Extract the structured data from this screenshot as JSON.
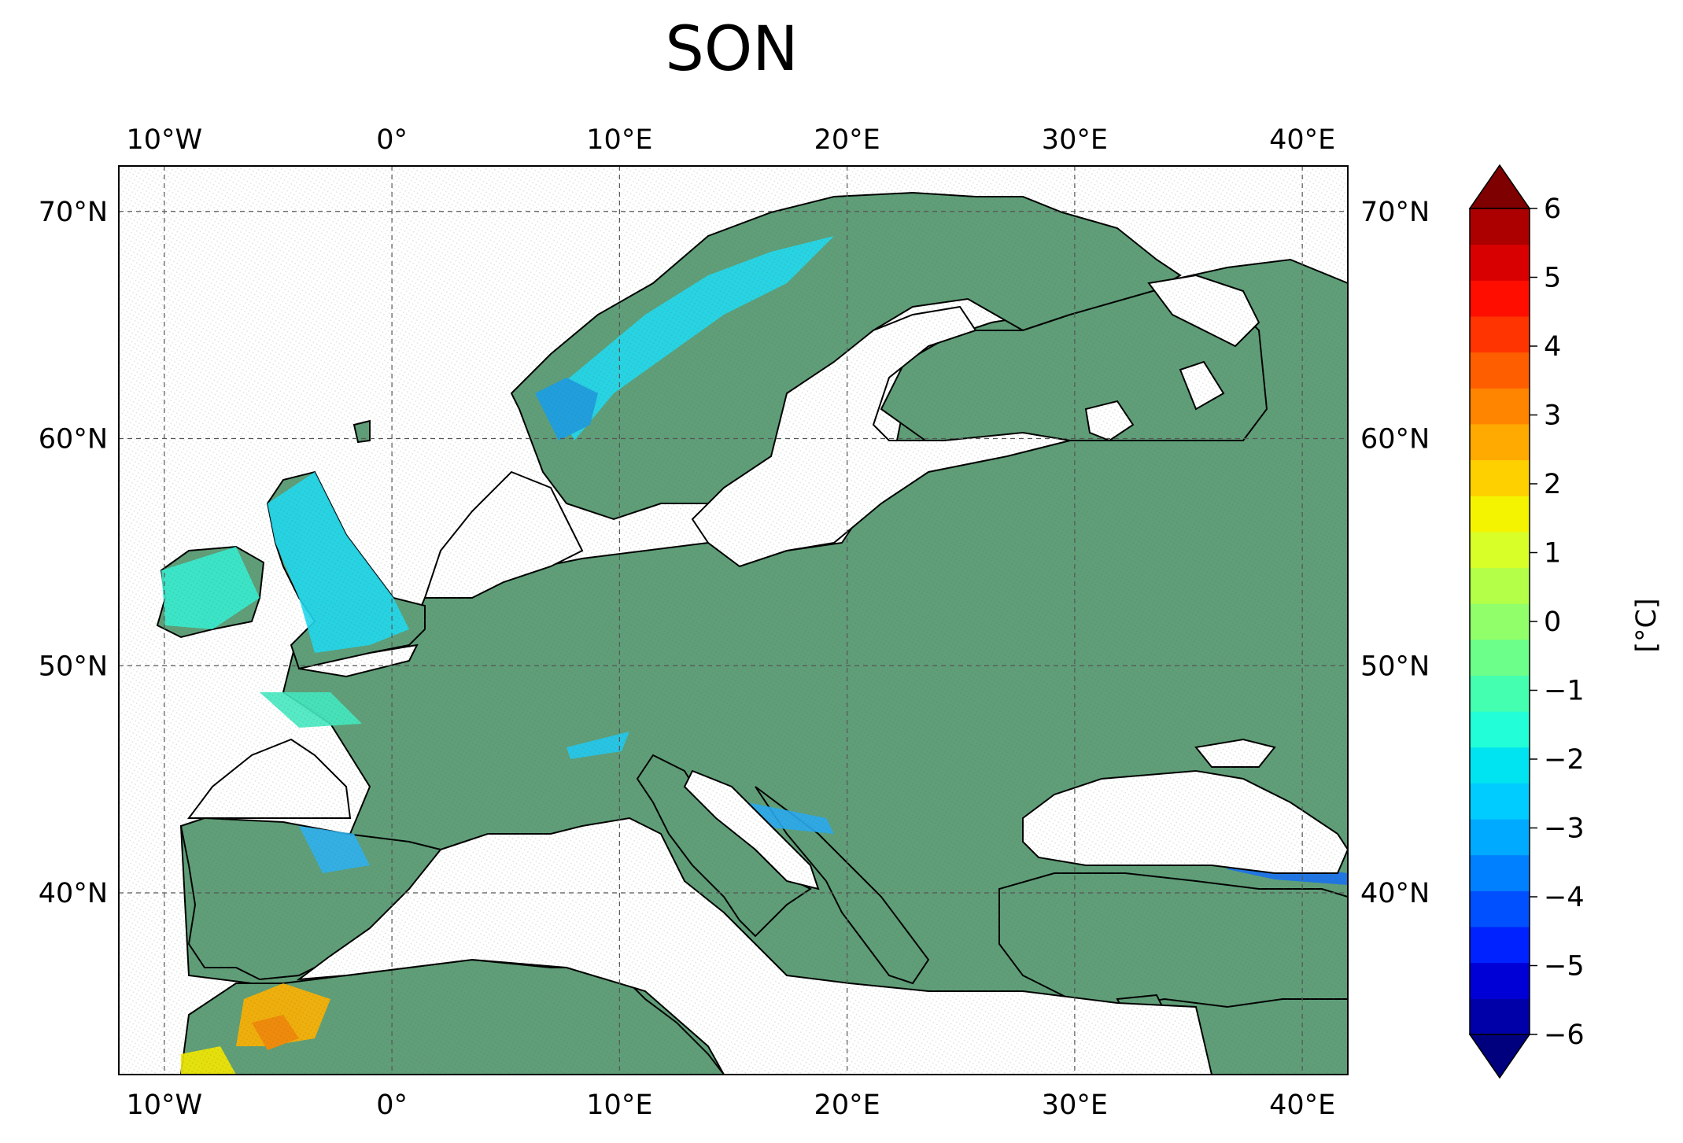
{
  "title": "SON",
  "map": {
    "lon_ticks": [
      "10°W",
      "0°",
      "10°E",
      "20°E",
      "30°E",
      "40°E"
    ],
    "lat_ticks": [
      "70°N",
      "60°N",
      "50°N",
      "40°N"
    ],
    "lon_values": [
      -10,
      0,
      10,
      20,
      30,
      40
    ],
    "lat_values": [
      70,
      60,
      50,
      40
    ],
    "lon_range": [
      -12,
      42
    ],
    "lat_range": [
      32,
      72
    ],
    "gridlines": true,
    "land_color": "#5f9e78",
    "ocean_color": "#ffffff"
  },
  "colorbar": {
    "label": "[°C]",
    "ticks": [
      "6",
      "5",
      "4",
      "3",
      "2",
      "1",
      "0",
      "−1",
      "−2",
      "−3",
      "−4",
      "−5",
      "−6"
    ],
    "range": [
      -6,
      6
    ],
    "extend": "both",
    "colors": [
      "#00007f",
      "#0000a8",
      "#0000d6",
      "#0022ff",
      "#0050ff",
      "#0080ff",
      "#00aaff",
      "#00ccff",
      "#00e4f2",
      "#22ffd8",
      "#44ffb0",
      "#6cff8a",
      "#90ff6a",
      "#b4ff48",
      "#d8ff28",
      "#f4f400",
      "#ffd000",
      "#ffaa00",
      "#ff8400",
      "#ff5e00",
      "#ff3400",
      "#ff0e00",
      "#d80000",
      "#ac0000",
      "#7f0000"
    ]
  }
}
